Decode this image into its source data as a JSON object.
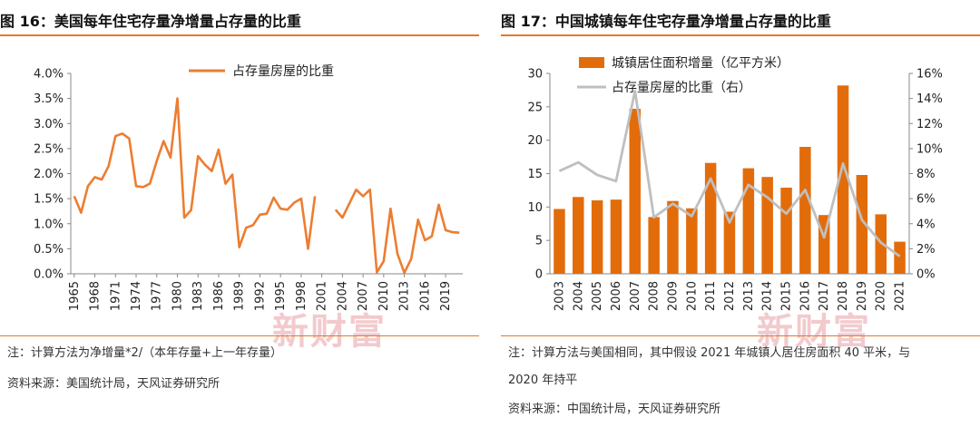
{
  "colors": {
    "accent": "#e07a2c",
    "bar": "#e36c0a",
    "line_gray": "#bfbfbf",
    "line_orange": "#ed7d31",
    "watermark": "#e8a0a6"
  },
  "watermark_text": "新财富",
  "left_panel": {
    "title": "图 16：美国每年住宅存量净增量占存量的比重",
    "note": "注：计算方法为净增量*2/（本年存量+上一年存量）",
    "source": "资料来源：美国统计局，天风证券研究所"
  },
  "right_panel": {
    "title": "图 17：中国城镇每年住宅存量净增量占存量的比重",
    "note_line1": "注：计算方法与美国相同，其中假设 2021 年城镇人居住房面积 40 平米，与",
    "note_line2": "2020 年持平",
    "source": "资料来源：中国统计局，天风证券研究所"
  },
  "chart_data": [
    {
      "type": "line",
      "title": "",
      "legend": [
        "占存量房屋的比重"
      ],
      "x": [
        1965,
        1966,
        1967,
        1968,
        1969,
        1970,
        1971,
        1972,
        1973,
        1974,
        1975,
        1976,
        1977,
        1978,
        1979,
        1980,
        1981,
        1982,
        1983,
        1984,
        1985,
        1986,
        1987,
        1988,
        1989,
        1990,
        1991,
        1992,
        1993,
        1994,
        1995,
        1996,
        1997,
        1998,
        1999,
        2000,
        2001,
        2002,
        2003,
        2004,
        2005,
        2006,
        2007,
        2008,
        2009,
        2010,
        2011,
        2012,
        2013,
        2014,
        2015,
        2016,
        2017,
        2018,
        2019,
        2020,
        2021
      ],
      "x_tick_labels": [
        "1965",
        "1968",
        "1971",
        "1974",
        "1977",
        "1980",
        "1983",
        "1986",
        "1989",
        "1992",
        "1995",
        "1998",
        "2001",
        "2004",
        "2007",
        "2010",
        "2013",
        "2016",
        "2019"
      ],
      "series": [
        {
          "name": "占存量房屋的比重",
          "values": [
            1.55,
            1.22,
            1.75,
            1.93,
            1.88,
            2.15,
            2.75,
            2.8,
            2.7,
            1.75,
            1.73,
            1.8,
            2.25,
            2.65,
            2.32,
            3.5,
            1.12,
            1.27,
            2.35,
            2.18,
            2.05,
            2.48,
            1.8,
            1.98,
            0.53,
            0.92,
            0.97,
            1.18,
            1.2,
            1.52,
            1.3,
            1.28,
            1.42,
            1.5,
            0.5,
            1.55,
            null,
            null,
            1.28,
            1.12,
            1.4,
            1.68,
            1.55,
            1.68,
            0.03,
            0.25,
            1.3,
            0.4,
            0.02,
            0.3,
            1.08,
            0.67,
            0.75,
            1.38,
            0.87,
            0.83,
            0.82
          ]
        }
      ],
      "y_ticks": [
        "0.0%",
        "0.5%",
        "1.0%",
        "1.5%",
        "2.0%",
        "2.5%",
        "3.0%",
        "3.5%",
        "4.0%"
      ],
      "ylim": [
        0,
        4.0
      ],
      "legend_position": "top"
    },
    {
      "type": "bar",
      "title": "",
      "categories": [
        "2003",
        "2004",
        "2005",
        "2006",
        "2007",
        "2008",
        "2009",
        "2010",
        "2011",
        "2012",
        "2013",
        "2014",
        "2015",
        "2016",
        "2017",
        "2018",
        "2019",
        "2020",
        "2021"
      ],
      "series": [
        {
          "name": "城镇居住面积增量（亿平方米）",
          "type": "bar",
          "axis": "left",
          "values": [
            9.7,
            11.5,
            11.0,
            11.1,
            24.7,
            8.5,
            10.9,
            9.8,
            16.6,
            9.3,
            15.8,
            14.5,
            12.9,
            19.0,
            8.8,
            28.2,
            14.8,
            8.9,
            4.8
          ]
        },
        {
          "name": "占存量房屋的比重（右）",
          "type": "line",
          "axis": "right",
          "values": [
            8.2,
            8.9,
            7.9,
            7.4,
            14.6,
            4.5,
            5.6,
            4.6,
            7.6,
            4.1,
            7.1,
            6.1,
            4.8,
            6.7,
            2.9,
            8.8,
            4.3,
            2.5,
            1.4
          ]
        }
      ],
      "y_left_ticks": [
        "0",
        "5",
        "10",
        "15",
        "20",
        "25",
        "30"
      ],
      "y_right_ticks": [
        "0%",
        "2%",
        "4%",
        "6%",
        "8%",
        "10%",
        "12%",
        "14%",
        "16%"
      ],
      "ylim_left": [
        0,
        30
      ],
      "ylim_right": [
        0,
        16
      ],
      "legend_position": "top-left"
    }
  ]
}
